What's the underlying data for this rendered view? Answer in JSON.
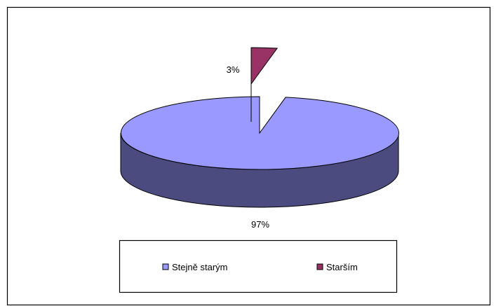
{
  "chart_data": {
    "type": "pie",
    "style": "3d-exploded",
    "categories": [
      "Stejně starým",
      "Starším"
    ],
    "values": [
      97,
      3
    ],
    "data_labels": [
      "97%",
      "3%"
    ],
    "colors": {
      "Stejně starým": {
        "top": "#9999ff",
        "side": "#4b4b80"
      },
      "Starším": {
        "top": "#993366",
        "side": "#4d1933"
      }
    },
    "legend_position": "bottom"
  }
}
